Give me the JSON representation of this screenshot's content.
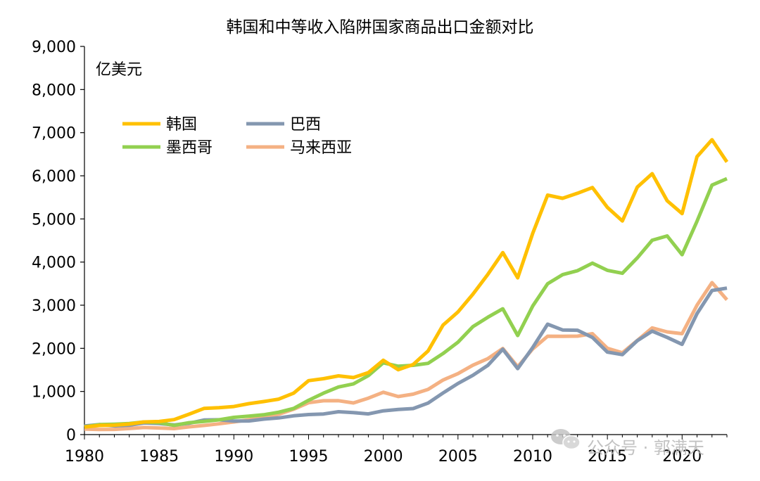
{
  "chart_data": {
    "type": "line",
    "title": "韩国和中等收入陷阱国家商品出口金额对比",
    "unit_label": "亿美元",
    "xlabel": "",
    "ylabel": "",
    "xlim": [
      1980,
      2023
    ],
    "ylim": [
      0,
      9000
    ],
    "y_ticks": [
      0,
      1000,
      2000,
      3000,
      4000,
      5000,
      6000,
      7000,
      8000,
      9000
    ],
    "y_tick_labels": [
      "0",
      "1,000",
      "2,000",
      "3,000",
      "4,000",
      "5,000",
      "6,000",
      "7,000",
      "8,000",
      "9,000"
    ],
    "x_ticks": [
      1980,
      1985,
      1990,
      1995,
      2000,
      2005,
      2010,
      2015,
      2020
    ],
    "x_tick_labels": [
      "1980",
      "1985",
      "1990",
      "1995",
      "2000",
      "2005",
      "2010",
      "2015",
      "2020"
    ],
    "grid": false,
    "legend_position": "top-left",
    "x": [
      1980,
      1981,
      1982,
      1983,
      1984,
      1985,
      1986,
      1987,
      1988,
      1989,
      1990,
      1991,
      1992,
      1993,
      1994,
      1995,
      1996,
      1997,
      1998,
      1999,
      2000,
      2001,
      2002,
      2003,
      2004,
      2005,
      2006,
      2007,
      2008,
      2009,
      2010,
      2011,
      2012,
      2013,
      2014,
      2015,
      2016,
      2017,
      2018,
      2019,
      2020,
      2021,
      2022,
      2023
    ],
    "series": [
      {
        "name": "韩国",
        "color": "#FFC000",
        "values": [
          175,
          212,
          218,
          244,
          293,
          303,
          347,
          473,
          607,
          624,
          650,
          718,
          766,
          822,
          960,
          1251,
          1297,
          1362,
          1323,
          1437,
          1723,
          1504,
          1625,
          1938,
          2538,
          2844,
          3255,
          3715,
          4220,
          3635,
          4664,
          5552,
          5479,
          5596,
          5727,
          5268,
          4954,
          5737,
          6049,
          5422,
          5125,
          6444,
          6836,
          6322
        ]
      },
      {
        "name": "巴西",
        "color": "#8497B0",
        "values": [
          201,
          232,
          202,
          219,
          271,
          256,
          224,
          262,
          337,
          344,
          314,
          316,
          359,
          386,
          435,
          465,
          478,
          530,
          511,
          480,
          551,
          583,
          603,
          731,
          966,
          1185,
          1375,
          1606,
          1980,
          1530,
          2018,
          2560,
          2426,
          2420,
          2251,
          1913,
          1853,
          2177,
          2399,
          2254,
          2092,
          2805,
          3341,
          3396
        ]
      },
      {
        "name": "墨西哥",
        "color": "#92D050",
        "values": [
          180,
          231,
          241,
          258,
          294,
          276,
          214,
          276,
          306,
          342,
          400,
          427,
          460,
          519,
          607,
          796,
          960,
          1104,
          1175,
          1366,
          1664,
          1585,
          1606,
          1651,
          1880,
          2142,
          2502,
          2722,
          2917,
          2297,
          2981,
          3497,
          3707,
          3800,
          3975,
          3808,
          3740,
          4095,
          4507,
          4606,
          4170,
          4947,
          5784,
          5933
        ]
      },
      {
        "name": "马来西亚",
        "color": "#F4B183",
        "values": [
          129,
          117,
          120,
          140,
          164,
          154,
          138,
          180,
          212,
          250,
          294,
          343,
          404,
          472,
          588,
          738,
          784,
          786,
          733,
          845,
          982,
          882,
          938,
          1047,
          1265,
          1413,
          1609,
          1761,
          1996,
          1571,
          1986,
          2281,
          2278,
          2283,
          2340,
          2000,
          1897,
          2182,
          2474,
          2380,
          2340,
          3000,
          3524,
          3126
        ]
      }
    ]
  },
  "watermark": {
    "icon": "wechat-icon",
    "text": "公众号 · 郭满天"
  }
}
